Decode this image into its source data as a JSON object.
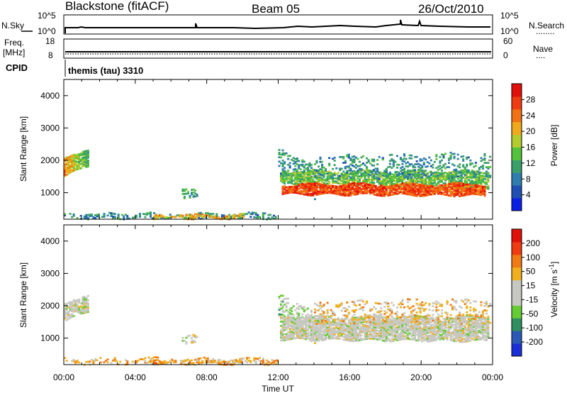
{
  "header": {
    "station": "Blackstone (fitACF)",
    "beam": "Beam 05",
    "date": "26/Oct/2010"
  },
  "status_panels": {
    "nsky_label": "N.Sky",
    "nsearch_label": "N.Search",
    "nsky_ticks": [
      "10^5",
      "10^0"
    ],
    "nsearch_ticks": [
      "10^5",
      "10^0"
    ],
    "freq_label_1": "Freq.",
    "freq_label_2": "[MHz]",
    "freq_ticks": [
      "18",
      "8"
    ],
    "nave_label": "Nave",
    "nave_ticks": [
      "60",
      "0"
    ],
    "cpid_label": "CPID",
    "cpid_value": "themis (tau) 3310"
  },
  "legend_style": {
    "nsearch_dots": "........",
    "nave_dots": "...."
  },
  "colors": {
    "power": [
      "#0a1fe6",
      "#1f4fb4",
      "#2e7dae",
      "#3aa06a",
      "#53c23c",
      "#b4cc2e",
      "#f0a81c",
      "#f07214",
      "#f03a10",
      "#e20f0a"
    ],
    "velocity": [
      "#1b2fd8",
      "#2a5ab5",
      "#2f8f60",
      "#66cc33",
      "#c8c8c2",
      "#c8c8c2",
      "#f0b020",
      "#f07a14",
      "#f03a10",
      "#e0100a"
    ]
  },
  "chart_data": [
    {
      "type": "heatmap",
      "title": "",
      "xlabel": "Time UT",
      "ylabel": "Slant Range [km]",
      "x_ticks": [
        "00:00",
        "04:00",
        "08:00",
        "12:00",
        "16:00",
        "20:00",
        "00:00"
      ],
      "xlim_hours": [
        0,
        24
      ],
      "ylim_km": [
        180,
        4500
      ],
      "y_ticks": [
        1000,
        2000,
        3000,
        4000
      ],
      "colorbar": {
        "label": "Power [dB]",
        "range": [
          0,
          32
        ],
        "ticks": [
          4,
          8,
          12,
          16,
          20,
          24,
          28
        ]
      },
      "echo_regions": [
        {
          "t0": 0.0,
          "t1": 1.4,
          "r0_start": 1500,
          "r0_end": 1850,
          "r1_start": 2000,
          "r1_end": 2400,
          "level_start": 0.72,
          "level_end": 0.35,
          "density": 0.85
        },
        {
          "t0": 0.0,
          "t1": 12.0,
          "r0_start": 200,
          "r0_end": 200,
          "r1_start": 350,
          "r1_end": 350,
          "level_start": 0.3,
          "level_end": 0.3,
          "density": 0.4
        },
        {
          "t0": 5.0,
          "t1": 10.0,
          "r0_start": 200,
          "r0_end": 200,
          "r1_start": 300,
          "r1_end": 300,
          "level_start": 0.65,
          "level_end": 0.65,
          "density": 0.6
        },
        {
          "t0": 6.6,
          "t1": 7.4,
          "r0_start": 850,
          "r0_end": 850,
          "r1_start": 1050,
          "r1_end": 1050,
          "level_start": 0.35,
          "level_end": 0.35,
          "density": 0.35
        },
        {
          "t0": 12.0,
          "t1": 14.0,
          "r0_start": 1600,
          "r0_end": 750,
          "r1_start": 2300,
          "r1_end": 1900,
          "level_start": 0.3,
          "level_end": 0.35,
          "density": 0.35
        },
        {
          "t0": 12.1,
          "t1": 23.8,
          "r0_start": 1300,
          "r0_end": 1100,
          "r1_start": 1650,
          "r1_end": 1650,
          "level_start": 0.45,
          "level_end": 0.45,
          "density": 0.75
        },
        {
          "t0": 12.2,
          "t1": 23.6,
          "r0_start": 950,
          "r0_end": 900,
          "r1_start": 1250,
          "r1_end": 1250,
          "level_start": 0.85,
          "level_end": 0.8,
          "density": 0.9
        },
        {
          "t0": 14.0,
          "t1": 23.9,
          "r0_start": 1450,
          "r0_end": 1450,
          "r1_start": 2100,
          "r1_end": 2200,
          "level_start": 0.3,
          "level_end": 0.32,
          "density": 0.25
        }
      ]
    },
    {
      "type": "heatmap",
      "title": "",
      "xlabel": "Time UT",
      "ylabel": "Slant Range [km]",
      "x_ticks": [
        "00:00",
        "04:00",
        "08:00",
        "12:00",
        "16:00",
        "20:00",
        "00:00"
      ],
      "xlim_hours": [
        0,
        24
      ],
      "ylim_km": [
        180,
        4500
      ],
      "y_ticks": [
        1000,
        2000,
        3000,
        4000
      ],
      "colorbar": {
        "label": "Velocity [m s^-1]",
        "ticks": [
          "200",
          "100",
          "50",
          "15",
          "-15",
          "-50",
          "-100",
          "-200"
        ]
      },
      "echo_regions": [
        {
          "t0": 0.0,
          "t1": 1.4,
          "r0_start": 1500,
          "r0_end": 1850,
          "r1_start": 2000,
          "r1_end": 2400,
          "level_start": 0.5,
          "level_end": 0.5,
          "density": 0.8
        },
        {
          "t0": 0.0,
          "t1": 12.0,
          "r0_start": 200,
          "r0_end": 200,
          "r1_start": 350,
          "r1_end": 350,
          "level_start": 0.65,
          "level_end": 0.65,
          "density": 0.35
        },
        {
          "t0": 5.0,
          "t1": 10.0,
          "r0_start": 200,
          "r0_end": 200,
          "r1_start": 300,
          "r1_end": 300,
          "level_start": 0.68,
          "level_end": 0.68,
          "density": 0.55
        },
        {
          "t0": 6.6,
          "t1": 7.4,
          "r0_start": 850,
          "r0_end": 850,
          "r1_start": 1050,
          "r1_end": 1050,
          "level_start": 0.5,
          "level_end": 0.5,
          "density": 0.3
        },
        {
          "t0": 12.0,
          "t1": 14.0,
          "r0_start": 1600,
          "r0_end": 750,
          "r1_start": 2300,
          "r1_end": 1900,
          "level_start": 0.38,
          "level_end": 0.5,
          "density": 0.35
        },
        {
          "t0": 12.1,
          "t1": 23.8,
          "r0_start": 950,
          "r0_end": 900,
          "r1_start": 1650,
          "r1_end": 1650,
          "level_start": 0.5,
          "level_end": 0.5,
          "density": 0.85
        },
        {
          "t0": 14.0,
          "t1": 23.9,
          "r0_start": 1450,
          "r0_end": 1450,
          "r1_start": 2100,
          "r1_end": 2200,
          "level_start": 0.62,
          "level_end": 0.62,
          "density": 0.22
        }
      ]
    }
  ]
}
